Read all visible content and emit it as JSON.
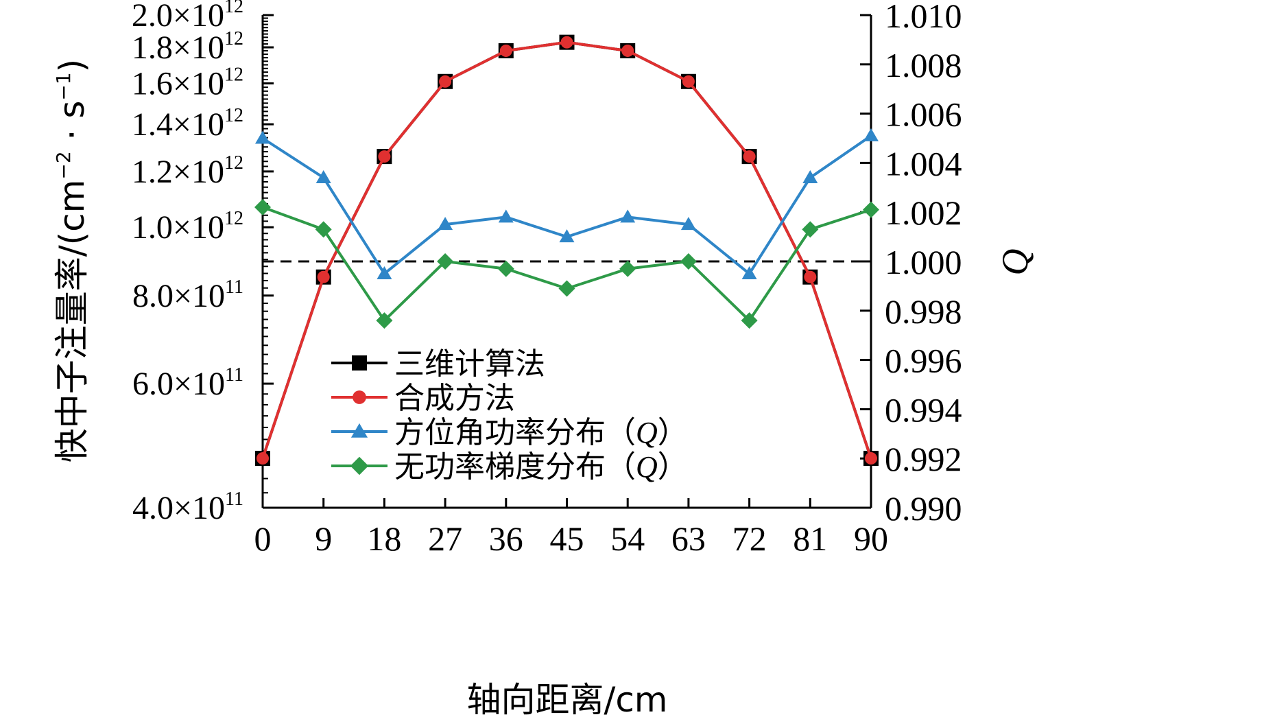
{
  "chart_data": {
    "type": "line",
    "x": [
      0,
      9,
      18,
      27,
      36,
      45,
      54,
      63,
      72,
      81,
      90
    ],
    "xlabel": "轴向距离/cm",
    "xlim": [
      0,
      90
    ],
    "ylabel_left": {
      "main": "快中子注量率/(cm",
      "sup1": "−2",
      "mid": " · s",
      "sup2": "−1",
      "end": ")"
    },
    "ylabel_right": "Q",
    "y_left_scale": "log",
    "y_left_ticks": [
      {
        "value": 400000000000.0,
        "mantissa": "4.0",
        "exp": "11"
      },
      {
        "value": 600000000000.0,
        "mantissa": "6.0",
        "exp": "11"
      },
      {
        "value": 800000000000.0,
        "mantissa": "8.0",
        "exp": "11"
      },
      {
        "value": 1000000000000.0,
        "mantissa": "1.0",
        "exp": "12"
      },
      {
        "value": 1200000000000.0,
        "mantissa": "1.2",
        "exp": "12"
      },
      {
        "value": 1400000000000.0,
        "mantissa": "1.4",
        "exp": "12"
      },
      {
        "value": 1600000000000.0,
        "mantissa": "1.6",
        "exp": "12"
      },
      {
        "value": 1800000000000.0,
        "mantissa": "1.8",
        "exp": "12"
      },
      {
        "value": 2000000000000.0,
        "mantissa": "2.0",
        "exp": "12"
      }
    ],
    "times_sign": "×10",
    "y_left_lim": [
      400000000000.0,
      2000000000000.0
    ],
    "y_right_lim": [
      0.99,
      1.01
    ],
    "y_right_ticks": [
      "0.990",
      "0.992",
      "0.994",
      "0.996",
      "0.998",
      "1.000",
      "1.002",
      "1.004",
      "1.006",
      "1.008",
      "1.010"
    ],
    "reference_line": {
      "axis": "right",
      "value": 1.0,
      "style": "dashed"
    },
    "series": [
      {
        "name": "三维计算法",
        "axis": "left",
        "color": "#000000",
        "marker": "square",
        "values": [
          470000000000.0,
          850000000000.0,
          1260000000000.0,
          1610000000000.0,
          1780000000000.0,
          1830000000000.0,
          1780000000000.0,
          1610000000000.0,
          1260000000000.0,
          850000000000.0,
          470000000000.0
        ]
      },
      {
        "name": "合成方法",
        "axis": "left",
        "color": "#e03030",
        "marker": "circle",
        "values": [
          470000000000.0,
          850000000000.0,
          1260000000000.0,
          1610000000000.0,
          1780000000000.0,
          1830000000000.0,
          1780000000000.0,
          1610000000000.0,
          1260000000000.0,
          850000000000.0,
          470000000000.0
        ]
      },
      {
        "name": "方位角功率分布（Q）",
        "axis": "right",
        "color": "#2f86c8",
        "marker": "triangle",
        "values": [
          1.005,
          1.0034,
          0.9995,
          1.0015,
          1.0018,
          1.001,
          1.0018,
          1.0015,
          0.9995,
          1.0034,
          1.0051
        ]
      },
      {
        "name": "无功率梯度分布（Q）",
        "axis": "right",
        "color": "#2e9a48",
        "marker": "diamond",
        "values": [
          1.0022,
          1.0013,
          0.9976,
          1.0,
          0.9997,
          0.9989,
          0.9997,
          1.0,
          0.9976,
          1.0013,
          1.0021
        ]
      }
    ],
    "legend": {
      "placement": "lower-left-inside",
      "entries": [
        "三维计算法",
        "合成方法",
        "方位角功率分布（",
        "无功率梯度分布（"
      ],
      "q_symbol": "Q",
      "close": "）"
    },
    "grid": false
  }
}
